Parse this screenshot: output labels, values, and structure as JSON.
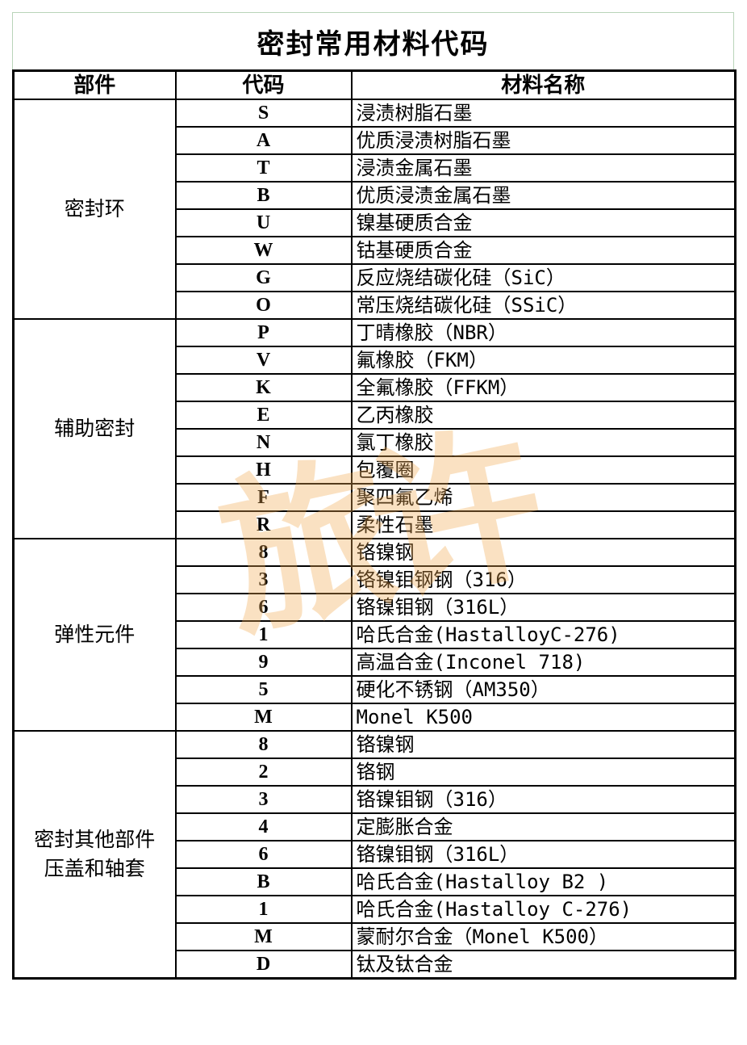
{
  "title": "密封常用材料代码",
  "headers": {
    "part": "部件",
    "code": "代码",
    "name": "材料名称"
  },
  "groups": [
    {
      "part": "密封环",
      "rows": [
        {
          "code": "S",
          "name": "浸渍树脂石墨"
        },
        {
          "code": "A",
          "name": "优质浸渍树脂石墨"
        },
        {
          "code": "T",
          "name": "浸渍金属石墨"
        },
        {
          "code": "B",
          "name": "优质浸渍金属石墨"
        },
        {
          "code": "U",
          "name": "镍基硬质合金"
        },
        {
          "code": "W",
          "name": "钴基硬质合金"
        },
        {
          "code": "G",
          "name": "反应烧结碳化硅（SiC）"
        },
        {
          "code": "O",
          "name": "常压烧结碳化硅（SSiC）"
        }
      ]
    },
    {
      "part": "辅助密封",
      "rows": [
        {
          "code": "P",
          "name": "丁晴橡胶（NBR）"
        },
        {
          "code": "V",
          "name": "氟橡胶（FKM）"
        },
        {
          "code": "K",
          "name": "全氟橡胶（FFKM）"
        },
        {
          "code": "E",
          "name": "乙丙橡胶"
        },
        {
          "code": "N",
          "name": "氯丁橡胶"
        },
        {
          "code": "H",
          "name": "包覆圈"
        },
        {
          "code": "F",
          "name": "聚四氟乙烯"
        },
        {
          "code": "R",
          "name": "柔性石墨"
        }
      ]
    },
    {
      "part": "弹性元件",
      "rows": [
        {
          "code": "8",
          "name": "铬镍钢"
        },
        {
          "code": "3",
          "name": "铬镍钼钢钢（316）"
        },
        {
          "code": "6",
          "name": "铬镍钼钢（316L）"
        },
        {
          "code": "1",
          "name": "哈氏合金(HastalloyC-276)"
        },
        {
          "code": "9",
          "name": "高温合金(Inconel 718)"
        },
        {
          "code": "5",
          "name": "硬化不锈钢（AM350）"
        },
        {
          "code": "M",
          "name": "Monel K500"
        }
      ]
    },
    {
      "part": "密封其他部件\n压盖和轴套",
      "rows": [
        {
          "code": "8",
          "name": "铬镍钢"
        },
        {
          "code": "2",
          "name": "铬钢"
        },
        {
          "code": "3",
          "name": "铬镍钼钢（316）"
        },
        {
          "code": "4",
          "name": "定膨胀合金"
        },
        {
          "code": "6",
          "name": "铬镍钼钢（316L）"
        },
        {
          "code": "B",
          "name": "哈氏合金(Hastalloy B2 )"
        },
        {
          "code": "1",
          "name": "哈氏合金(Hastalloy C-276)"
        },
        {
          "code": "M",
          "name": "蒙耐尔合金（Monel K500）"
        },
        {
          "code": "D",
          "name": "钛及钛合金"
        }
      ]
    }
  ],
  "watermark": "旅许",
  "colors": {
    "watermark": "#f0aa50",
    "title_border": "#b9d4b9"
  }
}
